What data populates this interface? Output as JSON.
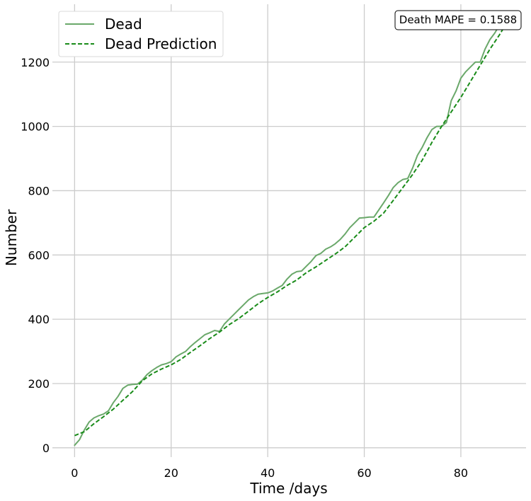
{
  "chart_data": {
    "type": "line",
    "xlabel": "Time /days",
    "ylabel": "Number",
    "xlim": [
      -4.6,
      93.5
    ],
    "ylim": [
      -29,
      1380
    ],
    "xticks": [
      0,
      20,
      40,
      60,
      80
    ],
    "yticks": [
      0,
      200,
      400,
      600,
      800,
      1000,
      1200
    ],
    "grid": true,
    "legend_position": "top-left",
    "annotation": "Death MAPE = 0.1588",
    "series": [
      {
        "name": "Dead",
        "style": "solid",
        "color": "#6aa86a",
        "x": [
          0,
          1,
          2,
          3,
          4,
          5,
          6,
          7,
          8,
          9,
          10,
          11,
          12,
          13,
          14,
          15,
          16,
          17,
          18,
          19,
          20,
          21,
          22,
          23,
          24,
          25,
          26,
          27,
          28,
          29,
          30,
          31,
          32,
          33,
          34,
          35,
          36,
          37,
          38,
          39,
          40,
          41,
          42,
          43,
          44,
          45,
          46,
          47,
          48,
          49,
          50,
          51,
          52,
          53,
          54,
          55,
          56,
          57,
          58,
          59,
          60,
          61,
          62,
          63,
          64,
          65,
          66,
          67,
          68,
          69,
          70,
          71,
          72,
          73,
          74,
          75,
          76,
          77,
          78,
          79,
          80,
          81,
          82,
          83,
          84,
          85,
          86,
          87,
          88,
          89
        ],
        "y": [
          8,
          25,
          55,
          80,
          93,
          100,
          105,
          115,
          140,
          160,
          185,
          195,
          197,
          198,
          210,
          228,
          240,
          250,
          258,
          262,
          268,
          283,
          292,
          300,
          315,
          328,
          340,
          352,
          358,
          365,
          362,
          385,
          400,
          415,
          430,
          445,
          460,
          470,
          478,
          480,
          482,
          488,
          497,
          505,
          525,
          540,
          548,
          550,
          565,
          580,
          598,
          605,
          618,
          625,
          635,
          648,
          665,
          685,
          700,
          715,
          716,
          718,
          718,
          740,
          762,
          785,
          810,
          825,
          835,
          838,
          870,
          910,
          935,
          965,
          990,
          1000,
          1000,
          1012,
          1080,
          1110,
          1150,
          1170,
          1185,
          1200,
          1200,
          1240,
          1270,
          1290,
          1315,
          1340
        ]
      },
      {
        "name": "Dead Prediction",
        "style": "dashed",
        "color": "#1a8c1a",
        "x": [
          0,
          2,
          4,
          6,
          8,
          10,
          12,
          14,
          16,
          18,
          20,
          22,
          24,
          26,
          28,
          30,
          32,
          34,
          36,
          38,
          40,
          42,
          44,
          46,
          48,
          50,
          52,
          54,
          56,
          58,
          60,
          62,
          64,
          66,
          68,
          70,
          72,
          74,
          76,
          78,
          80,
          82,
          84,
          86,
          88,
          89
        ],
        "y": [
          38,
          50,
          75,
          97,
          120,
          148,
          175,
          208,
          230,
          245,
          258,
          275,
          297,
          318,
          340,
          360,
          383,
          402,
          425,
          448,
          468,
          485,
          505,
          522,
          545,
          563,
          583,
          603,
          625,
          655,
          685,
          705,
          730,
          770,
          810,
          850,
          895,
          950,
          1000,
          1045,
          1090,
          1140,
          1190,
          1240,
          1285,
          1310
        ]
      }
    ]
  }
}
